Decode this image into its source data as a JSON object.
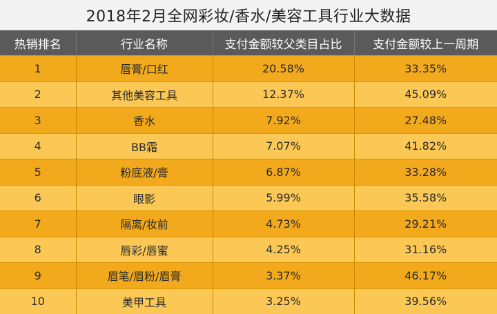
{
  "title": "2018年2月全网彩妆/香水/美容工具行业大数据",
  "table": {
    "headers": [
      "热销排名",
      "行业名称",
      "支付金额较父类目占比",
      "支付金额较上一周期"
    ],
    "rows": [
      [
        "1",
        "唇膏/口红",
        "20.58%",
        "33.35%"
      ],
      [
        "2",
        "其他美容工具",
        "12.37%",
        "45.09%"
      ],
      [
        "3",
        "香水",
        "7.92%",
        "27.48%"
      ],
      [
        "4",
        "BB霜",
        "7.07%",
        "41.82%"
      ],
      [
        "5",
        "粉底液/膏",
        "6.87%",
        "33.28%"
      ],
      [
        "6",
        "眼影",
        "5.99%",
        "35.58%"
      ],
      [
        "7",
        "隔离/妆前",
        "4.73%",
        "29.21%"
      ],
      [
        "8",
        "唇彩/唇蜜",
        "4.25%",
        "31.16%"
      ],
      [
        "9",
        "眉笔/眉粉/眉膏",
        "3.37%",
        "46.17%"
      ],
      [
        "10",
        "美甲工具",
        "3.25%",
        "39.56%"
      ]
    ]
  },
  "colors": {
    "header_bg": "#5a5a5a",
    "row_odd": "#f3a91c",
    "row_even": "#fbc855"
  }
}
